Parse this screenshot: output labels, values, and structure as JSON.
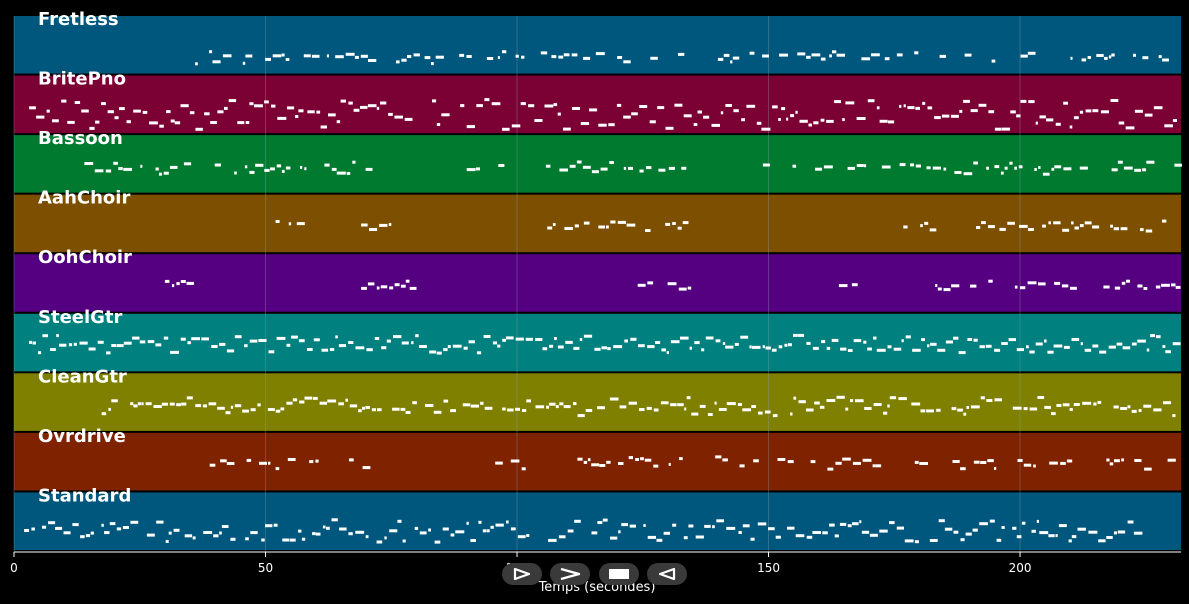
{
  "chart_data": {
    "type": "piano-roll",
    "xlabel": "Temps (secondes)",
    "xlim": [
      0,
      232
    ],
    "xticks": [
      0,
      50,
      100,
      150,
      200
    ],
    "grid": true,
    "tracks": [
      {
        "name": "Fretless",
        "color": "#00577d",
        "activity": [
          [
            36,
            231
          ]
        ],
        "density": 0.55,
        "rows": [
          0.72,
          0.65,
          0.7,
          0.75
        ]
      },
      {
        "name": "BritePno",
        "color": "#7b0034",
        "activity": [
          [
            3,
            231
          ]
        ],
        "density": 0.95,
        "rows": [
          0.45,
          0.55,
          0.65,
          0.75,
          0.85
        ]
      },
      {
        "name": "Bassoon",
        "color": "#007a2e",
        "activity": [
          [
            14,
            70
          ],
          [
            90,
            134
          ],
          [
            147,
            231
          ]
        ],
        "density": 0.6,
        "rows": [
          0.55,
          0.5,
          0.6
        ]
      },
      {
        "name": "AahChoir",
        "color": "#7c5000",
        "activity": [
          [
            52,
            57
          ],
          [
            69,
            80
          ],
          [
            106,
            134
          ],
          [
            175,
            231
          ]
        ],
        "density": 0.7,
        "rows": [
          0.48,
          0.52,
          0.56
        ]
      },
      {
        "name": "OohChoir",
        "color": "#540080",
        "activity": [
          [
            30,
            35
          ],
          [
            69,
            80
          ],
          [
            124,
            134
          ],
          [
            164,
            169
          ],
          [
            181,
            231
          ]
        ],
        "density": 0.7,
        "rows": [
          0.5,
          0.53
        ]
      },
      {
        "name": "SteelGtr",
        "color": "#00807e",
        "activity": [
          [
            3,
            231
          ]
        ],
        "density": 1.0,
        "rows": [
          0.5,
          0.45,
          0.55,
          0.6,
          0.4
        ]
      },
      {
        "name": "CleanGtr",
        "color": "#808000",
        "activity": [
          [
            14,
            231
          ]
        ],
        "density": 0.9,
        "rows": [
          0.55,
          0.5,
          0.6,
          0.45,
          0.65
        ]
      },
      {
        "name": "Ovrdrive",
        "color": "#7e2200",
        "activity": [
          [
            38,
            70
          ],
          [
            93,
            103
          ],
          [
            112,
            148
          ],
          [
            150,
            231
          ]
        ],
        "density": 0.55,
        "rows": [
          0.5,
          0.45,
          0.55
        ]
      },
      {
        "name": "Standard",
        "color": "#00577d",
        "activity": [
          [
            2,
            36
          ],
          [
            36,
            223
          ]
        ],
        "density": 0.85,
        "rows": [
          0.55,
          0.7,
          0.62,
          0.78,
          0.5
        ]
      }
    ]
  },
  "controls": [
    {
      "name": "play-button",
      "icon": "play-triangle-icon"
    },
    {
      "name": "forward-button",
      "icon": "chevron-right-icon"
    },
    {
      "name": "stop-button",
      "icon": "stop-square-icon"
    },
    {
      "name": "back-button",
      "icon": "play-reverse-icon"
    }
  ],
  "colors": {
    "background": "#000000",
    "note": "#ffffff",
    "grid": "#8aa0b0"
  }
}
